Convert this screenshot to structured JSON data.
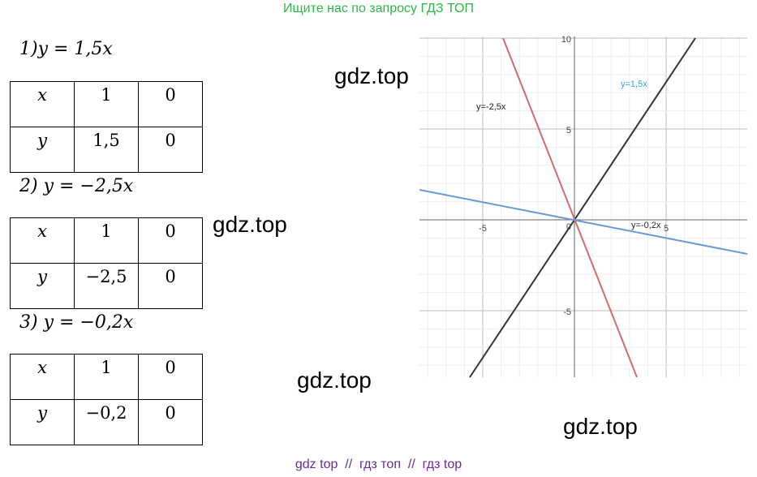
{
  "header": "Ищите нас по запросу ГДЗ ТОП",
  "problems": [
    {
      "heading": "1)y = 1,5x",
      "table": [
        [
          "x",
          "1",
          "0"
        ],
        [
          "y",
          "1,5",
          "0"
        ]
      ]
    },
    {
      "heading": "2) y = −2,5x",
      "table": [
        [
          "x",
          "1",
          "0"
        ],
        [
          "y",
          "−2,5",
          "0"
        ]
      ]
    },
    {
      "heading": "3) y = −0,2x",
      "table": [
        [
          "x",
          "1",
          "0"
        ],
        [
          "y",
          "−0,2",
          "0"
        ]
      ]
    }
  ],
  "graph": {
    "y_ticks": [
      "10",
      "5",
      "-5"
    ],
    "x_ticks": [
      "-5",
      "5"
    ],
    "origin": "0",
    "line_labels": [
      "y=-2,5x",
      "y=1,5x",
      "y=-0,2x"
    ]
  },
  "watermarks": [
    "gdz.top",
    "gdz.top",
    "gdz.top",
    "gdz.top"
  ],
  "footer": "gdz top  //  гдз топ  //  гдз top"
}
